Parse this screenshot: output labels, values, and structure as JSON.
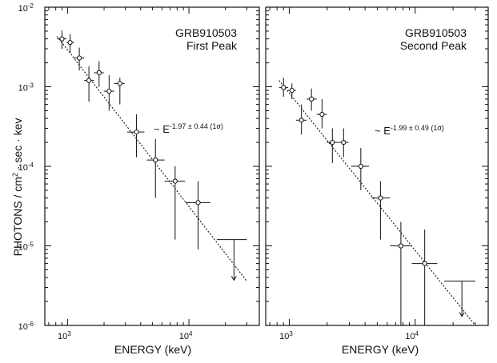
{
  "figure": {
    "ylabel_main": "PHOTONS / cm",
    "ylabel_sup": "2",
    "ylabel_tail": " · sec · kev",
    "xlabel": "ENERGY (keV)"
  },
  "chart_data": [
    {
      "type": "scatter",
      "scale": {
        "x": "log",
        "y": "log"
      },
      "xlabel": "ENERGY (keV)",
      "ylabel": "PHOTONS / cm2 · sec · kev",
      "xlim": [
        650,
        38000
      ],
      "ylim": [
        1e-06,
        0.01
      ],
      "x_ticks": [
        {
          "value": 1000,
          "base": "10",
          "exp": "3"
        },
        {
          "value": 10000,
          "base": "10",
          "exp": "4"
        }
      ],
      "y_ticks": [
        {
          "value": 0.01,
          "base": "10",
          "exp": "-2"
        },
        {
          "value": 0.001,
          "base": "10",
          "exp": "-3"
        },
        {
          "value": 0.0001,
          "base": "10",
          "exp": "-4"
        },
        {
          "value": 1e-05,
          "base": "10",
          "exp": "-5"
        },
        {
          "value": 1e-06,
          "base": "10",
          "exp": "-6"
        }
      ],
      "title": "GRB910503",
      "subtitle": "First Peak",
      "fit_label": {
        "prefix": "~ E",
        "exponent": "-1.97 ± 0.44 (1σ)"
      },
      "fit_line": {
        "x": [
          820,
          30000
        ],
        "y": [
          0.0043,
          3.6e-06
        ]
      },
      "points": [
        {
          "x": 900,
          "y": 0.004,
          "xlo": 820,
          "xhi": 980,
          "ylo": 0.003,
          "yhi": 0.0051
        },
        {
          "x": 1050,
          "y": 0.0036,
          "xlo": 980,
          "xhi": 1130,
          "ylo": 0.0027,
          "yhi": 0.0046
        },
        {
          "x": 1250,
          "y": 0.0023,
          "xlo": 1130,
          "xhi": 1370,
          "ylo": 0.0016,
          "yhi": 0.0031
        },
        {
          "x": 1500,
          "y": 0.0012,
          "xlo": 1370,
          "xhi": 1650,
          "ylo": 0.00065,
          "yhi": 0.0018
        },
        {
          "x": 1820,
          "y": 0.0015,
          "xlo": 1650,
          "xhi": 1990,
          "ylo": 0.001,
          "yhi": 0.0021
        },
        {
          "x": 2200,
          "y": 0.00088,
          "xlo": 1990,
          "xhi": 2420,
          "ylo": 0.0005,
          "yhi": 0.0014
        },
        {
          "x": 2700,
          "y": 0.0011,
          "xlo": 2420,
          "xhi": 2950,
          "ylo": 0.0006,
          "yhi": 0.0013
        },
        {
          "x": 3700,
          "y": 0.00027,
          "xlo": 3100,
          "xhi": 4300,
          "ylo": 0.00013,
          "yhi": 0.00045
        },
        {
          "x": 5300,
          "y": 0.00012,
          "xlo": 4500,
          "xhi": 6300,
          "ylo": 4e-05,
          "yhi": 0.00022
        },
        {
          "x": 7700,
          "y": 6.5e-05,
          "xlo": 6300,
          "xhi": 9300,
          "ylo": 1.2e-05,
          "yhi": 0.0001
        },
        {
          "x": 11900,
          "y": 3.5e-05,
          "xlo": 9400,
          "xhi": 15000,
          "ylo": 9e-06,
          "yhi": 6.5e-05
        },
        {
          "x": 23500,
          "y": 1.2e-05,
          "xlo": 17000,
          "xhi": 30000,
          "ylo": 3.7e-06,
          "yhi": 1.2e-05,
          "upper_limit": true
        }
      ]
    },
    {
      "type": "scatter",
      "scale": {
        "x": "log",
        "y": "log"
      },
      "xlabel": "ENERGY (keV)",
      "ylabel": "",
      "xlim": [
        650,
        38000
      ],
      "ylim": [
        1e-06,
        0.01
      ],
      "x_ticks": [
        {
          "value": 1000,
          "base": "10",
          "exp": "3"
        },
        {
          "value": 10000,
          "base": "10",
          "exp": "4"
        }
      ],
      "y_ticks": [],
      "title": "GRB910503",
      "subtitle": "Second Peak",
      "fit_label": {
        "prefix": "~ E",
        "exponent": "-1.99 ± 0.49 (1σ)"
      },
      "fit_line": {
        "x": [
          830,
          30000
        ],
        "y": [
          0.0012,
          1e-06
        ]
      },
      "points": [
        {
          "x": 900,
          "y": 0.00098,
          "xlo": 830,
          "xhi": 980,
          "ylo": 0.00075,
          "yhi": 0.0013
        },
        {
          "x": 1050,
          "y": 0.0009,
          "xlo": 980,
          "xhi": 1130,
          "ylo": 0.0007,
          "yhi": 0.0011
        },
        {
          "x": 1250,
          "y": 0.00038,
          "xlo": 1130,
          "xhi": 1370,
          "ylo": 0.00025,
          "yhi": 0.0006
        },
        {
          "x": 1500,
          "y": 0.0007,
          "xlo": 1370,
          "xhi": 1650,
          "ylo": 0.0005,
          "yhi": 0.00095
        },
        {
          "x": 1820,
          "y": 0.00045,
          "xlo": 1650,
          "xhi": 1990,
          "ylo": 0.0003,
          "yhi": 0.0007
        },
        {
          "x": 2200,
          "y": 0.0002,
          "xlo": 1990,
          "xhi": 2420,
          "ylo": 0.00011,
          "yhi": 0.0003
        },
        {
          "x": 2700,
          "y": 0.0002,
          "xlo": 2420,
          "xhi": 2950,
          "ylo": 0.00013,
          "yhi": 0.0003
        },
        {
          "x": 3700,
          "y": 0.0001,
          "xlo": 3100,
          "xhi": 4300,
          "ylo": 5e-05,
          "yhi": 0.00017
        },
        {
          "x": 5300,
          "y": 4e-05,
          "xlo": 4500,
          "xhi": 6300,
          "ylo": 1.2e-05,
          "yhi": 6.5e-05
        },
        {
          "x": 7700,
          "y": 1e-05,
          "xlo": 6300,
          "xhi": 9300,
          "ylo": 1e-06,
          "yhi": 2e-05
        },
        {
          "x": 11900,
          "y": 6e-06,
          "xlo": 9400,
          "xhi": 15000,
          "ylo": 1e-06,
          "yhi": 1.6e-05
        },
        {
          "x": 23500,
          "y": 3.6e-06,
          "xlo": 17000,
          "xhi": 30000,
          "ylo": 1.3e-06,
          "yhi": 3.6e-06,
          "upper_limit": true
        }
      ]
    }
  ]
}
